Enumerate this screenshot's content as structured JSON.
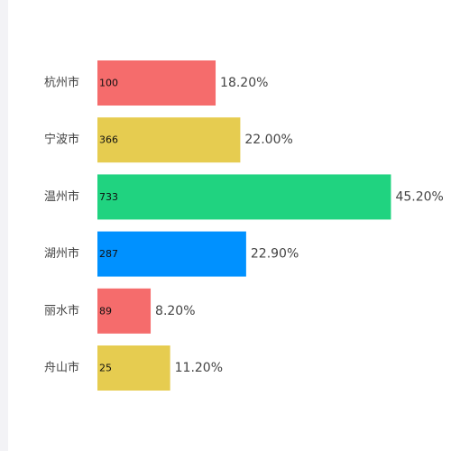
{
  "chart_data": {
    "type": "bar",
    "orientation": "horizontal",
    "categories": [
      "杭州市",
      "宁波市",
      "温州市",
      "湖州市",
      "丽水市",
      "舟山市"
    ],
    "values": [
      100,
      366,
      733,
      287,
      89,
      25
    ],
    "percent_labels": [
      "18.20%",
      "22.00%",
      "45.20%",
      "22.90%",
      "8.20%",
      "11.20%"
    ],
    "percent_values": [
      18.2,
      22.0,
      45.2,
      22.9,
      8.2,
      11.2
    ],
    "colors": [
      "#f56c6c",
      "#e6cc50",
      "#20d380",
      "#0091ff",
      "#f56c6c",
      "#e6cc50"
    ],
    "grid": false,
    "title": "",
    "xlabel": "",
    "ylabel": ""
  }
}
